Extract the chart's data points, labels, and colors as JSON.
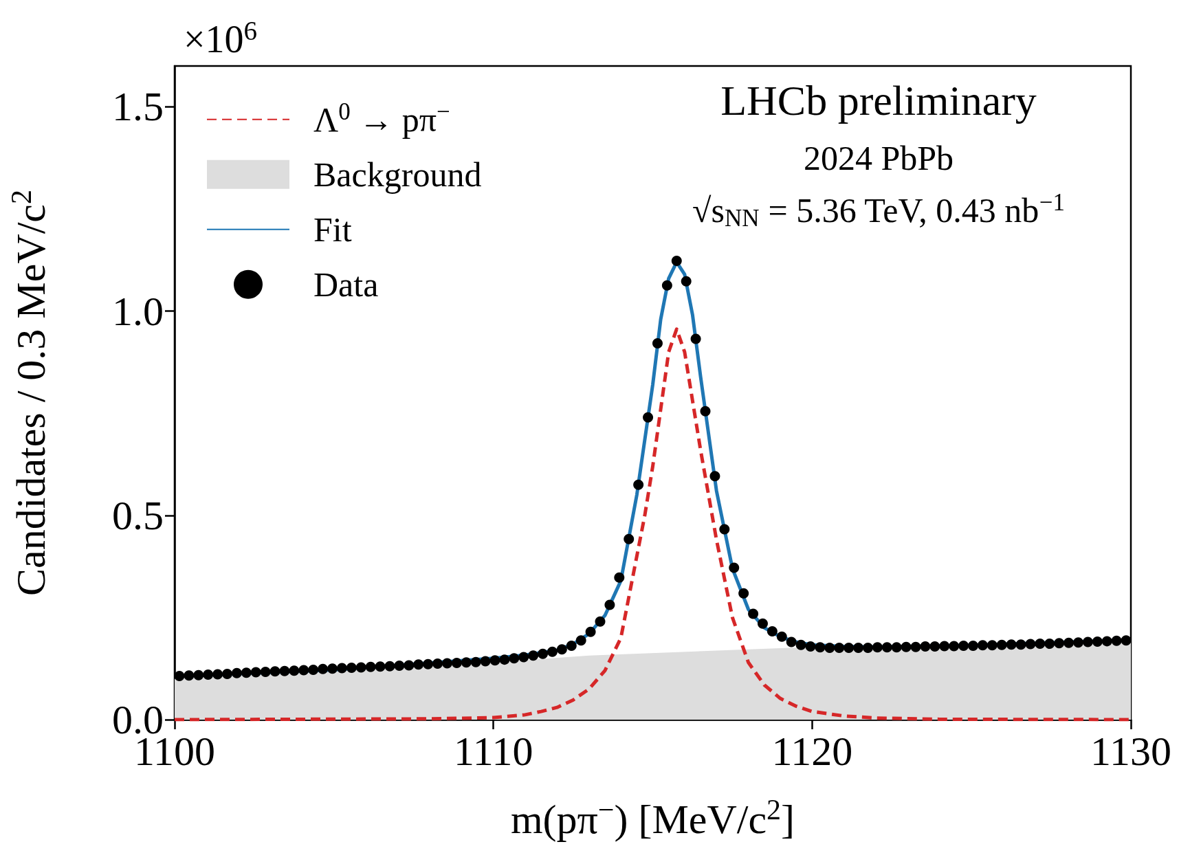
{
  "chart_data": {
    "type": "line",
    "xlabel": "m(pπ$^{−}$) [MeV/c$^{2}$]",
    "ylabel": "Candidates / 0.3 MeV/c$^{2}$",
    "annotations": [
      "×10$^{6}$",
      "LHCb preliminary",
      "2024 PbPb",
      "√s$_{NN}$ = 5.36 TeV, 0.43 nb$^{−1}$"
    ],
    "xlim": [
      1100,
      1130
    ],
    "xticks": [
      1100,
      1110,
      1120,
      1130
    ],
    "ylim": [
      0,
      1.6
    ],
    "yticks": [
      {
        "value": 0,
        "label": "0.0"
      },
      {
        "value": 0.5,
        "label": "0.5"
      },
      {
        "value": 1,
        "label": "1.0"
      },
      {
        "value": 1.5,
        "label": "1.5"
      }
    ],
    "grid": false,
    "legend": "top left",
    "series": [
      {
        "name": "Λ$^{0}$ → pπ$^{−}$",
        "color": "#d62728",
        "line_style": "dashed",
        "marker": "none",
        "x": [
          1100,
          1108,
          1110,
          1111,
          1111.5,
          1112,
          1112.5,
          1113,
          1113.5,
          1114,
          1114.5,
          1114.75,
          1115,
          1115.25,
          1115.5,
          1115.75,
          1116,
          1116.25,
          1116.5,
          1116.75,
          1117,
          1117.5,
          1118,
          1118.5,
          1119,
          1119.5,
          1120,
          1121,
          1122,
          1124,
          1130
        ],
        "values": [
          0,
          0.002,
          0.005,
          0.012,
          0.02,
          0.03,
          0.048,
          0.075,
          0.12,
          0.2,
          0.4,
          0.5,
          0.62,
          0.76,
          0.9,
          0.956,
          0.9,
          0.78,
          0.66,
          0.55,
          0.44,
          0.25,
          0.14,
          0.085,
          0.052,
          0.033,
          0.02,
          0.009,
          0.004,
          0.001,
          0
        ]
      },
      {
        "name": "Background",
        "type": "area",
        "color": "#dddddd",
        "marker": "none",
        "x": [
          1100,
          1110,
          1113,
          1120,
          1130
        ],
        "values": [
          0.1,
          0.14,
          0.157,
          0.178,
          0.193
        ]
      },
      {
        "name": "Fit",
        "color": "#1f77b4",
        "line_style": "solid",
        "marker": "none",
        "x": [
          1100,
          1105,
          1110,
          1111,
          1112,
          1112.5,
          1113,
          1113.5,
          1114,
          1114.5,
          1115,
          1115.25,
          1115.5,
          1115.75,
          1116,
          1116.25,
          1116.5,
          1117,
          1117.5,
          1118,
          1118.5,
          1119,
          1119.5,
          1120,
          1121,
          1122,
          1125,
          1130
        ],
        "values": [
          0.106,
          0.122,
          0.15,
          0.158,
          0.17,
          0.185,
          0.21,
          0.255,
          0.34,
          0.55,
          0.82,
          0.98,
          1.08,
          1.12,
          1.09,
          0.99,
          0.84,
          0.56,
          0.37,
          0.27,
          0.225,
          0.203,
          0.19,
          0.183,
          0.179,
          0.178,
          0.182,
          0.195
        ]
      },
      {
        "name": "Data",
        "type": "scatter",
        "color": "#000000",
        "marker": "circle",
        "x": [
          1100.15,
          1100.45,
          1100.75,
          1101.05,
          1101.35,
          1101.65,
          1101.95,
          1102.25,
          1102.55,
          1102.85,
          1103.15,
          1103.45,
          1103.75,
          1104.05,
          1104.35,
          1104.65,
          1104.95,
          1105.25,
          1105.55,
          1105.85,
          1106.15,
          1106.45,
          1106.75,
          1107.05,
          1107.35,
          1107.65,
          1107.95,
          1108.25,
          1108.55,
          1108.85,
          1109.15,
          1109.45,
          1109.75,
          1110.05,
          1110.35,
          1110.65,
          1110.95,
          1111.25,
          1111.55,
          1111.85,
          1112.15,
          1112.45,
          1112.75,
          1113.05,
          1113.35,
          1113.65,
          1113.95,
          1114.25,
          1114.55,
          1114.85,
          1115.15,
          1115.45,
          1115.75,
          1116.05,
          1116.35,
          1116.65,
          1116.95,
          1117.25,
          1117.55,
          1117.85,
          1118.15,
          1118.45,
          1118.75,
          1119.05,
          1119.35,
          1119.65,
          1119.95,
          1120.25,
          1120.55,
          1120.85,
          1121.15,
          1121.45,
          1121.75,
          1122.05,
          1122.35,
          1122.65,
          1122.95,
          1123.25,
          1123.55,
          1123.85,
          1124.15,
          1124.45,
          1124.75,
          1125.05,
          1125.35,
          1125.65,
          1125.95,
          1126.25,
          1126.55,
          1126.85,
          1127.15,
          1127.45,
          1127.75,
          1128.05,
          1128.35,
          1128.65,
          1128.95,
          1129.25,
          1129.55,
          1129.85
        ],
        "values": [
          0.107,
          0.108,
          0.109,
          0.11,
          0.111,
          0.112,
          0.114,
          0.115,
          0.116,
          0.117,
          0.118,
          0.119,
          0.12,
          0.121,
          0.122,
          0.124,
          0.125,
          0.126,
          0.127,
          0.128,
          0.129,
          0.13,
          0.131,
          0.132,
          0.133,
          0.135,
          0.136,
          0.137,
          0.138,
          0.139,
          0.14,
          0.141,
          0.143,
          0.145,
          0.147,
          0.15,
          0.153,
          0.157,
          0.161,
          0.166,
          0.172,
          0.181,
          0.194,
          0.215,
          0.24,
          0.281,
          0.348,
          0.442,
          0.575,
          0.74,
          0.921,
          1.063,
          1.123,
          1.073,
          0.932,
          0.755,
          0.596,
          0.466,
          0.372,
          0.309,
          0.259,
          0.235,
          0.216,
          0.203,
          0.19,
          0.183,
          0.179,
          0.177,
          0.176,
          0.176,
          0.176,
          0.176,
          0.176,
          0.177,
          0.177,
          0.177,
          0.178,
          0.178,
          0.179,
          0.179,
          0.18,
          0.18,
          0.181,
          0.181,
          0.182,
          0.182,
          0.183,
          0.184,
          0.184,
          0.185,
          0.186,
          0.186,
          0.187,
          0.188,
          0.189,
          0.19,
          0.191,
          0.192,
          0.193,
          0.194
        ]
      }
    ]
  }
}
